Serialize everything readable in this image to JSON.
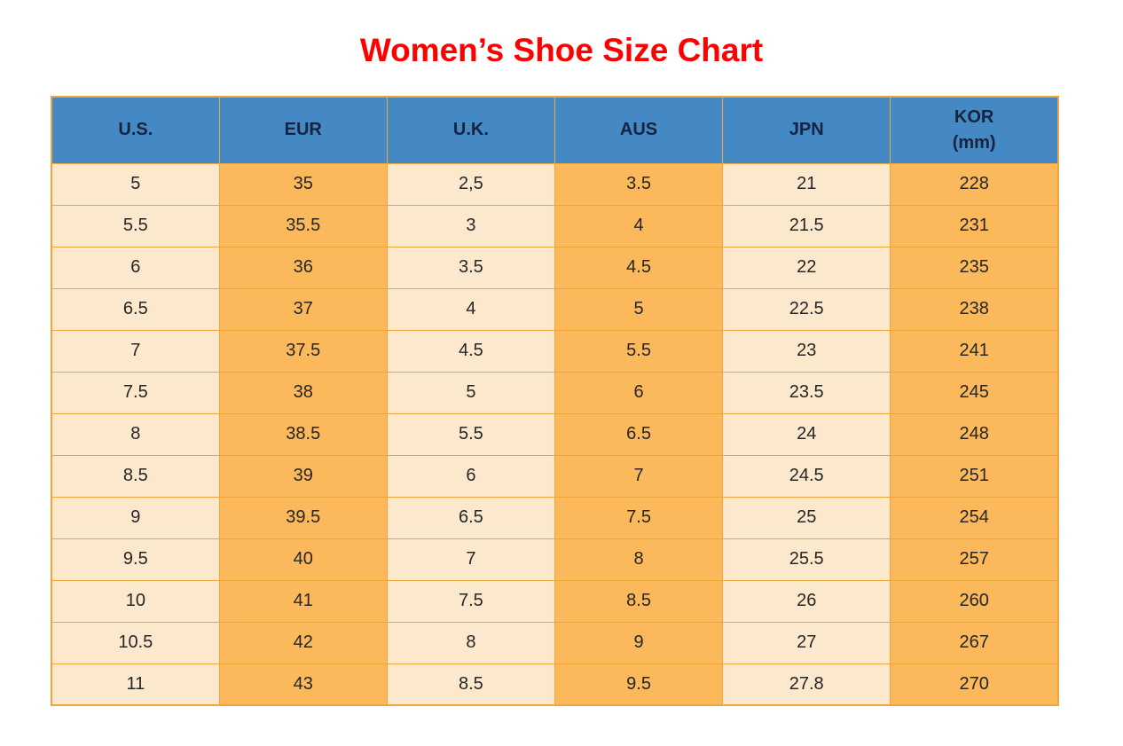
{
  "title": {
    "text": "Women’s Shoe Size Chart"
  },
  "colors": {
    "title_red": "#FE0000",
    "header_blue": "#4489C4",
    "header_text": "#17233F",
    "cell_light": "#FCE8CD",
    "cell_orange": "#FBB95C",
    "border_orange": "#F0A43C",
    "cell_text": "#262626"
  },
  "chart_data": {
    "type": "table",
    "title": "Women’s Shoe Size Chart",
    "columns": [
      "U.S.",
      "EUR",
      "U.K.",
      "AUS",
      "JPN",
      "KOR (mm)"
    ],
    "header_display": [
      {
        "line1": "U.S.",
        "line2": ""
      },
      {
        "line1": "EUR",
        "line2": ""
      },
      {
        "line1": "U.K.",
        "line2": ""
      },
      {
        "line1": "AUS",
        "line2": ""
      },
      {
        "line1": "JPN",
        "line2": ""
      },
      {
        "line1": "KOR",
        "line2": "(mm)"
      }
    ],
    "rows": [
      [
        "5",
        "35",
        "2,5",
        "3.5",
        "21",
        "228"
      ],
      [
        "5.5",
        "35.5",
        "3",
        "4",
        "21.5",
        "231"
      ],
      [
        "6",
        "36",
        "3.5",
        "4.5",
        "22",
        "235"
      ],
      [
        "6.5",
        "37",
        "4",
        "5",
        "22.5",
        "238"
      ],
      [
        "7",
        "37.5",
        "4.5",
        "5.5",
        "23",
        "241"
      ],
      [
        "7.5",
        "38",
        "5",
        "6",
        "23.5",
        "245"
      ],
      [
        "8",
        "38.5",
        "5.5",
        "6.5",
        "24",
        "248"
      ],
      [
        "8.5",
        "39",
        "6",
        "7",
        "24.5",
        "251"
      ],
      [
        "9",
        "39.5",
        "6.5",
        "7.5",
        "25",
        "254"
      ],
      [
        "9.5",
        "40",
        "7",
        "8",
        "25.5",
        "257"
      ],
      [
        "10",
        "41",
        "7.5",
        "8.5",
        "26",
        "260"
      ],
      [
        "10.5",
        "42",
        "8",
        "9",
        "27",
        "267"
      ],
      [
        "11",
        "43",
        "8.5",
        "9.5",
        "27.8",
        "270"
      ]
    ]
  }
}
